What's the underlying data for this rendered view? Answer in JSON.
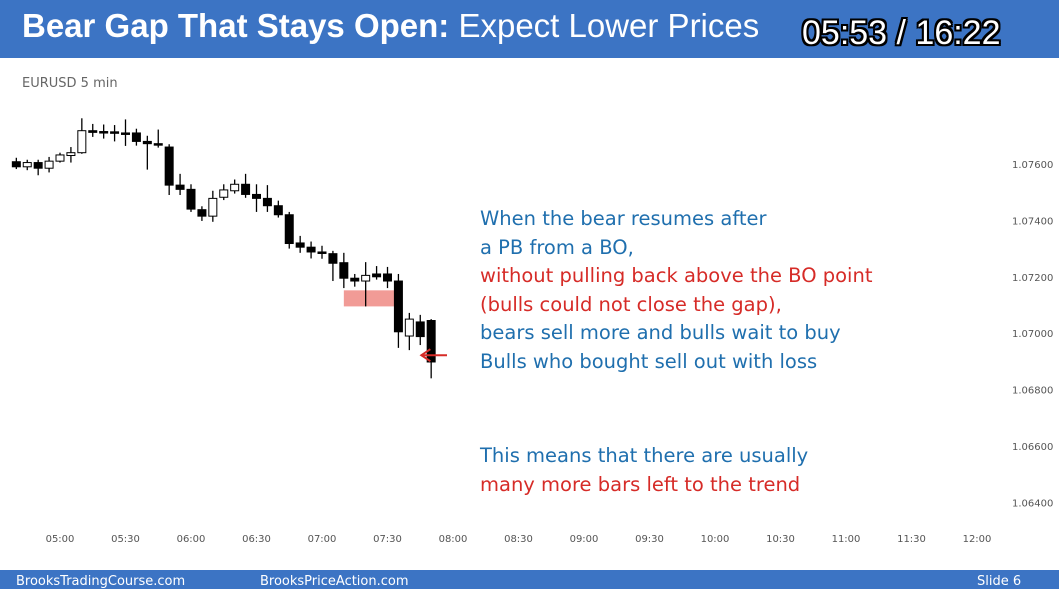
{
  "header": {
    "title_bold": "Bear Gap That Stays Open:",
    "title_regular": "Expect Lower Prices",
    "timer": "05:53 / 16:22",
    "background_color": "#3c74c4"
  },
  "chart_data": {
    "type": "candlestick",
    "symbol_label": "EURUSD 5 min",
    "x_tick_labels": [
      "05:00",
      "05:30",
      "06:00",
      "06:30",
      "07:00",
      "07:30",
      "08:00",
      "08:30",
      "09:00",
      "09:30",
      "10:00",
      "10:30",
      "11:00",
      "11:30",
      "12:00"
    ],
    "y_tick_labels": [
      "1.07600",
      "1.07400",
      "1.07200",
      "1.07000",
      "1.06800",
      "1.06600",
      "1.06400"
    ],
    "ylim": [
      1.0632,
      1.0788
    ],
    "bar_interval_minutes": 5,
    "first_bar_time": "04:40",
    "candles": [
      {
        "o": 1.07608,
        "h": 1.07622,
        "l": 1.07582,
        "c": 1.0759
      },
      {
        "o": 1.0759,
        "h": 1.07615,
        "l": 1.07578,
        "c": 1.07605
      },
      {
        "o": 1.07605,
        "h": 1.07615,
        "l": 1.0756,
        "c": 1.07585
      },
      {
        "o": 1.07585,
        "h": 1.07625,
        "l": 1.0757,
        "c": 1.0761
      },
      {
        "o": 1.0761,
        "h": 1.0764,
        "l": 1.07605,
        "c": 1.07632
      },
      {
        "o": 1.0763,
        "h": 1.0766,
        "l": 1.07605,
        "c": 1.0764
      },
      {
        "o": 1.0764,
        "h": 1.07762,
        "l": 1.07636,
        "c": 1.07718
      },
      {
        "o": 1.07718,
        "h": 1.07742,
        "l": 1.07696,
        "c": 1.07712
      },
      {
        "o": 1.07715,
        "h": 1.0774,
        "l": 1.0769,
        "c": 1.07714
      },
      {
        "o": 1.07714,
        "h": 1.07738,
        "l": 1.0768,
        "c": 1.0771
      },
      {
        "o": 1.0771,
        "h": 1.07758,
        "l": 1.07664,
        "c": 1.07705
      },
      {
        "o": 1.0771,
        "h": 1.07725,
        "l": 1.07665,
        "c": 1.0768
      },
      {
        "o": 1.0768,
        "h": 1.077,
        "l": 1.0758,
        "c": 1.07672
      },
      {
        "o": 1.07672,
        "h": 1.07722,
        "l": 1.07658,
        "c": 1.07668
      },
      {
        "o": 1.0766,
        "h": 1.0767,
        "l": 1.0749,
        "c": 1.07525
      },
      {
        "o": 1.07525,
        "h": 1.07565,
        "l": 1.0749,
        "c": 1.0751
      },
      {
        "o": 1.0751,
        "h": 1.07528,
        "l": 1.0743,
        "c": 1.0744
      },
      {
        "o": 1.07438,
        "h": 1.0745,
        "l": 1.07398,
        "c": 1.07415
      },
      {
        "o": 1.07415,
        "h": 1.07505,
        "l": 1.07395,
        "c": 1.07478
      },
      {
        "o": 1.07482,
        "h": 1.07528,
        "l": 1.07472,
        "c": 1.07508
      },
      {
        "o": 1.07505,
        "h": 1.07545,
        "l": 1.07495,
        "c": 1.07528
      },
      {
        "o": 1.07528,
        "h": 1.07565,
        "l": 1.0748,
        "c": 1.07492
      },
      {
        "o": 1.07492,
        "h": 1.07528,
        "l": 1.0743,
        "c": 1.07478
      },
      {
        "o": 1.07478,
        "h": 1.07525,
        "l": 1.0743,
        "c": 1.07452
      },
      {
        "o": 1.07452,
        "h": 1.0747,
        "l": 1.0741,
        "c": 1.0742
      },
      {
        "o": 1.0742,
        "h": 1.0743,
        "l": 1.073,
        "c": 1.07318
      },
      {
        "o": 1.0732,
        "h": 1.07345,
        "l": 1.07285,
        "c": 1.07305
      },
      {
        "o": 1.07305,
        "h": 1.07325,
        "l": 1.07265,
        "c": 1.07288
      },
      {
        "o": 1.07288,
        "h": 1.0731,
        "l": 1.07264,
        "c": 1.07285
      },
      {
        "o": 1.07282,
        "h": 1.07292,
        "l": 1.07185,
        "c": 1.07248
      },
      {
        "o": 1.0725,
        "h": 1.07285,
        "l": 1.0716,
        "c": 1.07195
      },
      {
        "o": 1.07195,
        "h": 1.0721,
        "l": 1.07165,
        "c": 1.07185
      },
      {
        "o": 1.07185,
        "h": 1.07252,
        "l": 1.07095,
        "c": 1.07205
      },
      {
        "o": 1.0721,
        "h": 1.07238,
        "l": 1.0719,
        "c": 1.072
      },
      {
        "o": 1.0721,
        "h": 1.07235,
        "l": 1.0716,
        "c": 1.07185
      },
      {
        "o": 1.07185,
        "h": 1.0721,
        "l": 1.06948,
        "c": 1.07005
      },
      {
        "o": 1.0699,
        "h": 1.07072,
        "l": 1.0694,
        "c": 1.0705
      },
      {
        "o": 1.0704,
        "h": 1.07065,
        "l": 1.06958,
        "c": 1.06988
      },
      {
        "o": 1.07045,
        "h": 1.0705,
        "l": 1.0684,
        "c": 1.06898
      }
    ],
    "gap_highlight": {
      "time_start": "07:10",
      "time_end": "07:35",
      "price_low": 1.07095,
      "price_high": 1.07152,
      "color": "#ef8a84"
    },
    "arrow": {
      "from_time": "08:00",
      "to_time": "07:40",
      "price": 1.06922,
      "color": "#d62b27"
    }
  },
  "annotations": [
    {
      "text": "When the bear resumes after",
      "color": "#1f6fae"
    },
    {
      "text": "a PB from a BO,",
      "color": "#1f6fae"
    },
    {
      "text": "without pulling back above the BO point",
      "color": "#d62b27"
    },
    {
      "text": "(bulls could not close the gap),",
      "color": "#d62b27"
    },
    {
      "text": "bears sell more and bulls wait to buy",
      "color": "#1f6fae"
    },
    {
      "text": "Bulls who bought sell out with loss",
      "color": "#1f6fae"
    }
  ],
  "annotations2": [
    {
      "text": "This means that there are usually",
      "color": "#1f6fae"
    },
    {
      "text": "many more bars left to the trend",
      "color": "#d62b27"
    }
  ],
  "footer": {
    "left": "BrooksTradingCourse.com",
    "center": "BrooksPriceAction.com",
    "right": "Slide  6"
  }
}
